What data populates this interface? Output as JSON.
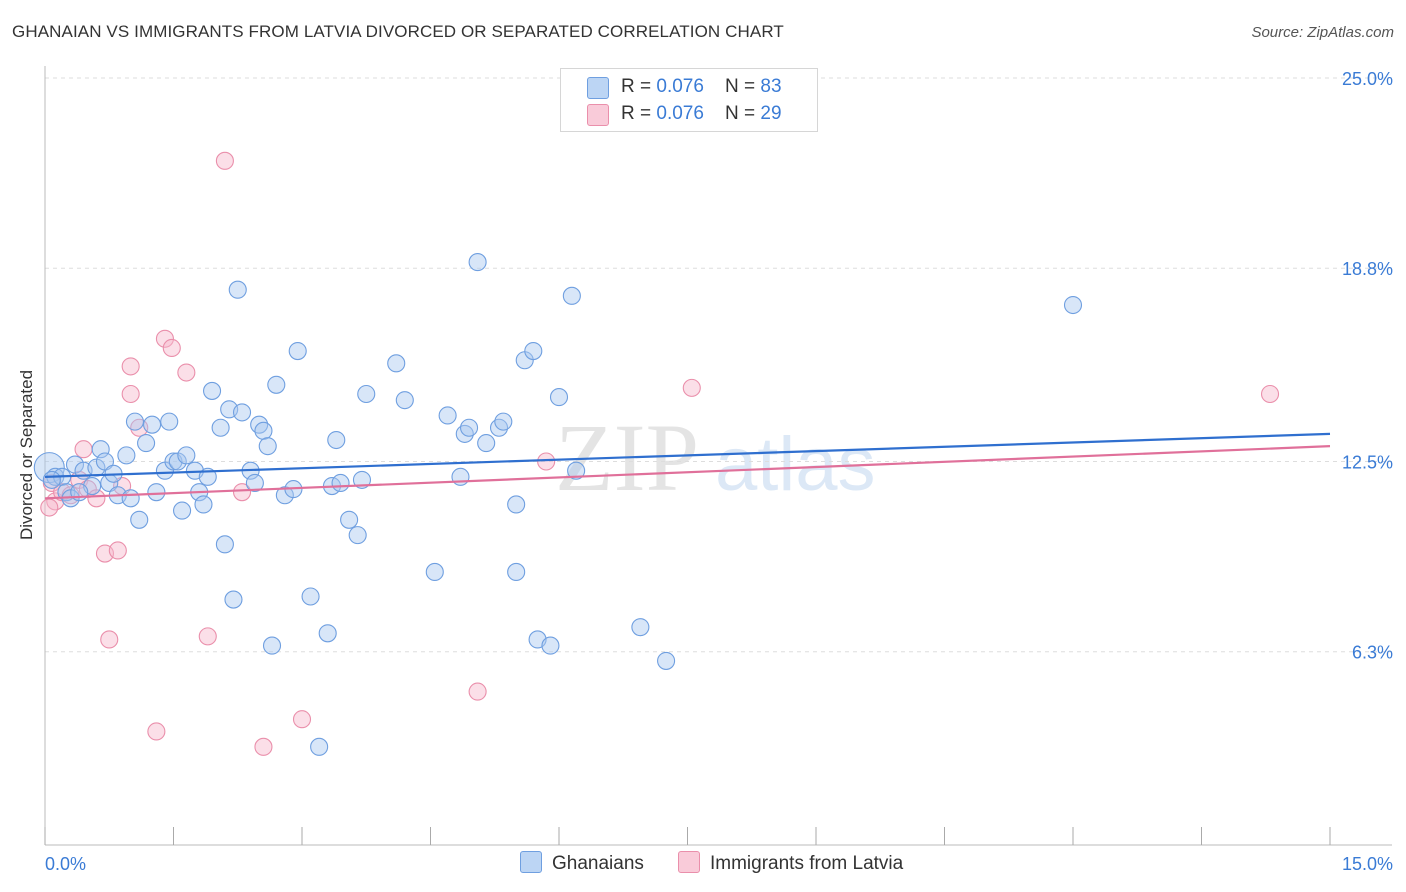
{
  "header": {
    "title": "GHANAIAN VS IMMIGRANTS FROM LATVIA DIVORCED OR SEPARATED CORRELATION CHART",
    "source": "Source: ZipAtlas.com"
  },
  "watermark": {
    "text_zip": "ZIP",
    "text_atlas": "atlas"
  },
  "legend": {
    "rows": [
      {
        "r_label": "R = ",
        "r_value": "0.076",
        "n_label": "N = ",
        "n_value": "83"
      },
      {
        "r_label": "R = ",
        "r_value": "0.076",
        "n_label": "N = ",
        "n_value": "29"
      }
    ]
  },
  "colors": {
    "blue_fill": "#a9c8f0",
    "blue_stroke": "#6f9fe0",
    "blue_line": "#2f6fcf",
    "pink_fill": "#f7b9cb",
    "pink_stroke": "#ea8fab",
    "pink_line": "#e0709a",
    "tick_label": "#3a7bd5",
    "grid": "#dddddd"
  },
  "chart_data": {
    "type": "scatter",
    "title": "GHANAIAN VS IMMIGRANTS FROM LATVIA DIVORCED OR SEPARATED CORRELATION CHART",
    "xlabel": "",
    "ylabel": "Divorced or Separated",
    "xlim": [
      0,
      15
    ],
    "ylim": [
      0,
      25
    ],
    "x_tick_labels": [
      {
        "value": 0,
        "label": "0.0%"
      },
      {
        "value": 15,
        "label": "15.0%"
      }
    ],
    "y_tick_labels": [
      {
        "value": 6.3,
        "label": "6.3%"
      },
      {
        "value": 12.5,
        "label": "12.5%"
      },
      {
        "value": 18.8,
        "label": "18.8%"
      },
      {
        "value": 25.0,
        "label": "25.0%"
      }
    ],
    "grid": true,
    "legend_position": "top-center",
    "series": [
      {
        "name": "Ghanaians",
        "color": "#6f9fe0",
        "trend": {
          "x": [
            0,
            15
          ],
          "y": [
            12.0,
            13.4
          ]
        },
        "points": [
          [
            0.05,
            12.3
          ],
          [
            0.12,
            12.0
          ],
          [
            0.2,
            12.0
          ],
          [
            0.25,
            11.5
          ],
          [
            0.3,
            11.3
          ],
          [
            0.35,
            12.4
          ],
          [
            0.45,
            12.2
          ],
          [
            0.55,
            11.7
          ],
          [
            0.6,
            12.3
          ],
          [
            0.65,
            12.9
          ],
          [
            0.7,
            12.5
          ],
          [
            0.75,
            11.8
          ],
          [
            0.8,
            12.1
          ],
          [
            0.85,
            11.4
          ],
          [
            0.95,
            12.7
          ],
          [
            1.0,
            11.3
          ],
          [
            1.05,
            13.8
          ],
          [
            1.1,
            10.6
          ],
          [
            1.18,
            13.1
          ],
          [
            1.25,
            13.7
          ],
          [
            1.3,
            11.5
          ],
          [
            1.4,
            12.2
          ],
          [
            1.45,
            13.8
          ],
          [
            1.5,
            12.5
          ],
          [
            1.55,
            12.5
          ],
          [
            1.6,
            10.9
          ],
          [
            1.65,
            12.7
          ],
          [
            1.75,
            12.2
          ],
          [
            1.8,
            11.5
          ],
          [
            1.85,
            11.1
          ],
          [
            1.9,
            12.0
          ],
          [
            1.95,
            14.8
          ],
          [
            2.05,
            13.6
          ],
          [
            2.1,
            9.8
          ],
          [
            2.15,
            14.2
          ],
          [
            2.2,
            8.0
          ],
          [
            2.25,
            18.1
          ],
          [
            2.3,
            14.1
          ],
          [
            2.4,
            12.2
          ],
          [
            2.45,
            11.8
          ],
          [
            2.5,
            13.7
          ],
          [
            2.55,
            13.5
          ],
          [
            2.6,
            13.0
          ],
          [
            2.65,
            6.5
          ],
          [
            2.7,
            15.0
          ],
          [
            2.8,
            11.4
          ],
          [
            2.9,
            11.6
          ],
          [
            2.95,
            16.1
          ],
          [
            3.1,
            8.1
          ],
          [
            3.2,
            3.2
          ],
          [
            3.3,
            6.9
          ],
          [
            3.35,
            11.7
          ],
          [
            3.4,
            13.2
          ],
          [
            3.45,
            11.8
          ],
          [
            3.55,
            10.6
          ],
          [
            3.65,
            10.1
          ],
          [
            3.7,
            11.9
          ],
          [
            3.75,
            14.7
          ],
          [
            4.1,
            15.7
          ],
          [
            4.2,
            14.5
          ],
          [
            4.55,
            8.9
          ],
          [
            4.7,
            14.0
          ],
          [
            4.85,
            12.0
          ],
          [
            4.9,
            13.4
          ],
          [
            4.95,
            13.6
          ],
          [
            5.15,
            13.1
          ],
          [
            5.3,
            13.6
          ],
          [
            5.35,
            13.8
          ],
          [
            5.05,
            19.0
          ],
          [
            5.5,
            11.1
          ],
          [
            5.5,
            8.9
          ],
          [
            5.6,
            15.8
          ],
          [
            5.7,
            16.1
          ],
          [
            5.75,
            6.7
          ],
          [
            5.9,
            6.5
          ],
          [
            6.0,
            14.6
          ],
          [
            6.15,
            17.9
          ],
          [
            6.2,
            12.2
          ],
          [
            6.95,
            7.1
          ],
          [
            7.25,
            6.0
          ],
          [
            12.0,
            17.6
          ],
          [
            0.08,
            11.9
          ],
          [
            0.4,
            11.5
          ]
        ]
      },
      {
        "name": "Immigrants from Latvia",
        "color": "#ea8fab",
        "trend": {
          "x": [
            0,
            15
          ],
          "y": [
            11.3,
            13.0
          ]
        },
        "points": [
          [
            0.08,
            11.8
          ],
          [
            0.12,
            11.2
          ],
          [
            0.2,
            11.5
          ],
          [
            0.3,
            11.4
          ],
          [
            0.4,
            11.9
          ],
          [
            0.45,
            12.9
          ],
          [
            0.5,
            11.6
          ],
          [
            0.6,
            11.3
          ],
          [
            0.7,
            9.5
          ],
          [
            0.75,
            6.7
          ],
          [
            0.85,
            9.6
          ],
          [
            0.9,
            11.7
          ],
          [
            1.0,
            15.6
          ],
          [
            1.0,
            14.7
          ],
          [
            1.1,
            13.6
          ],
          [
            1.3,
            3.7
          ],
          [
            1.4,
            16.5
          ],
          [
            1.48,
            16.2
          ],
          [
            1.65,
            15.4
          ],
          [
            2.1,
            22.3
          ],
          [
            1.9,
            6.8
          ],
          [
            2.3,
            11.5
          ],
          [
            2.55,
            3.2
          ],
          [
            3.0,
            4.1
          ],
          [
            5.05,
            5.0
          ],
          [
            5.85,
            12.5
          ],
          [
            7.55,
            14.9
          ],
          [
            14.3,
            14.7
          ],
          [
            0.05,
            11.0
          ]
        ]
      }
    ]
  }
}
